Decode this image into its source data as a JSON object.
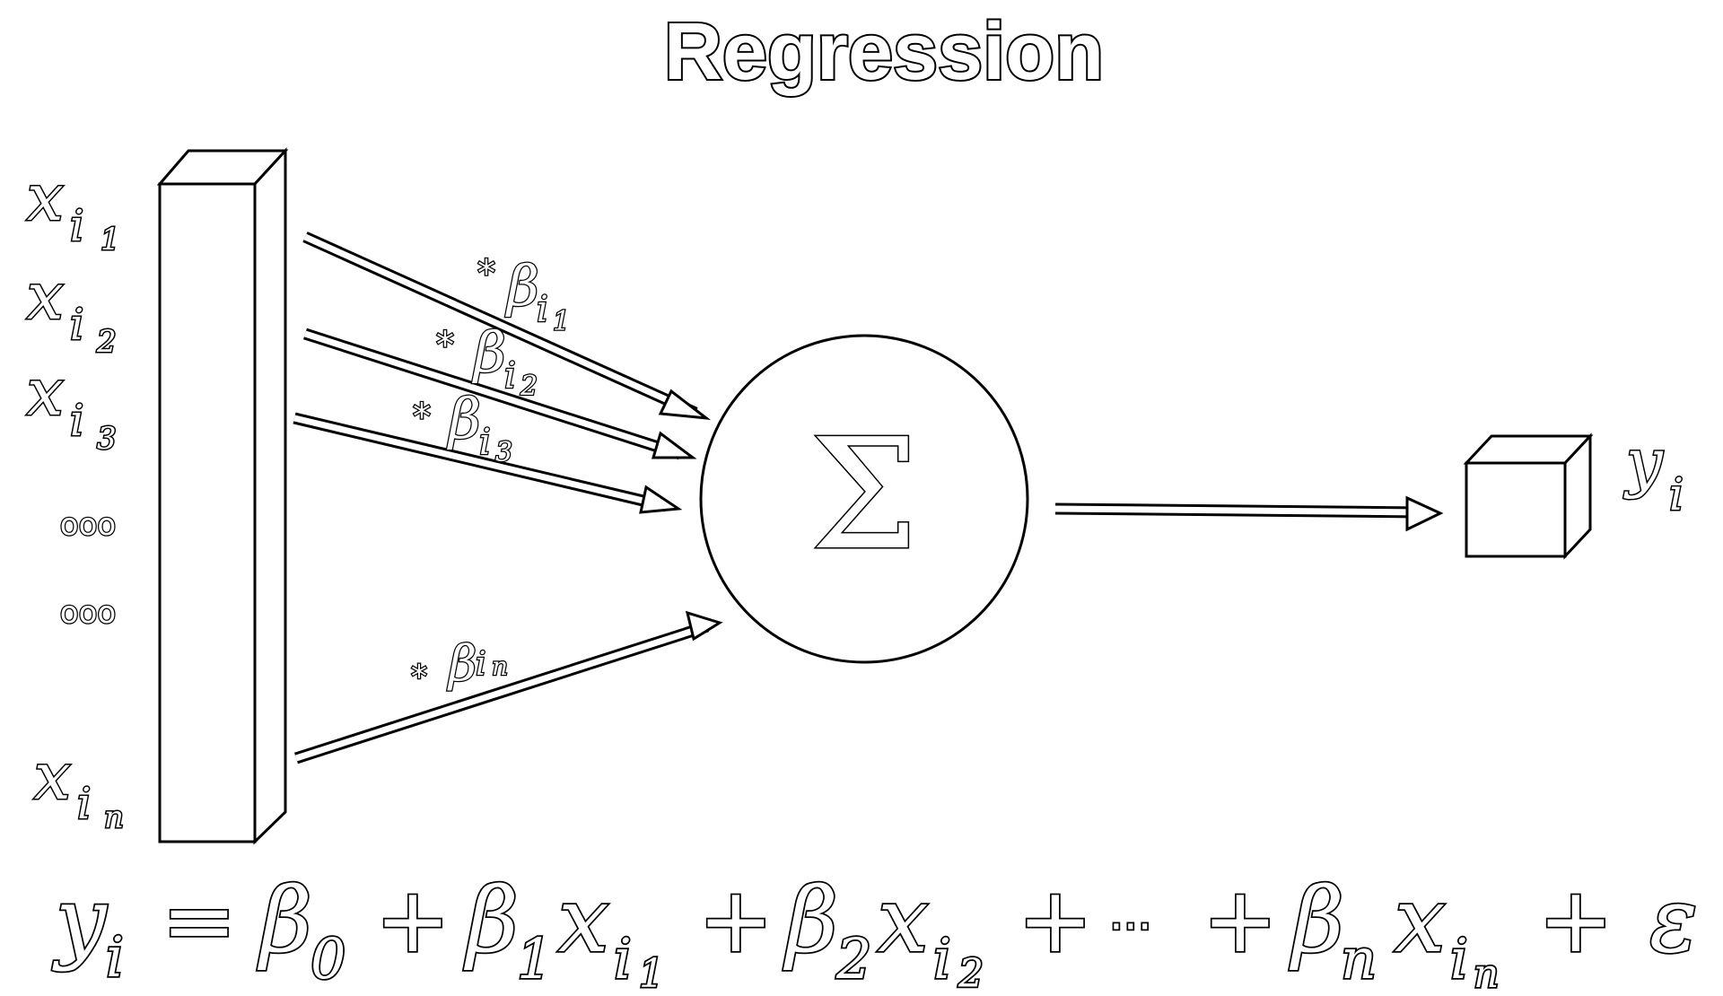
{
  "title": "Regression",
  "inputs": [
    {
      "base": "x",
      "sub": "i",
      "subsub": "1"
    },
    {
      "base": "x",
      "sub": "i",
      "subsub": "2"
    },
    {
      "base": "x",
      "sub": "i",
      "subsub": "3"
    },
    {
      "base": "x",
      "sub": "i",
      "subsub": "n"
    }
  ],
  "ellipsis": [
    "ooo",
    "ooo"
  ],
  "weights": [
    {
      "star": "*",
      "base": "β",
      "sub": "i",
      "subsub": "1"
    },
    {
      "star": "*",
      "base": "β",
      "sub": "i",
      "subsub": "2"
    },
    {
      "star": "*",
      "base": "β",
      "sub": "i",
      "subsub": "3"
    },
    {
      "star": "*",
      "base": "β",
      "sub": "i",
      "subsub": "n"
    }
  ],
  "sum_symbol": "Σ",
  "output": {
    "base": "y",
    "sub": "i"
  },
  "equation": {
    "lhs_base": "y",
    "lhs_sub": "i",
    "eq": "=",
    "terms": [
      {
        "coef": "β",
        "coef_sub": "0"
      },
      {
        "coef": "β",
        "coef_sub": "1",
        "var": "x",
        "var_sub": "i",
        "var_subsub": "1"
      },
      {
        "coef": "β",
        "coef_sub": "2",
        "var": "x",
        "var_sub": "i",
        "var_subsub": "2"
      }
    ],
    "plus": "+",
    "dots": "···",
    "last_term": {
      "coef": "β",
      "coef_sub": "n",
      "var": "x",
      "var_sub": "i",
      "var_subsub": "n"
    },
    "error": "ε"
  }
}
